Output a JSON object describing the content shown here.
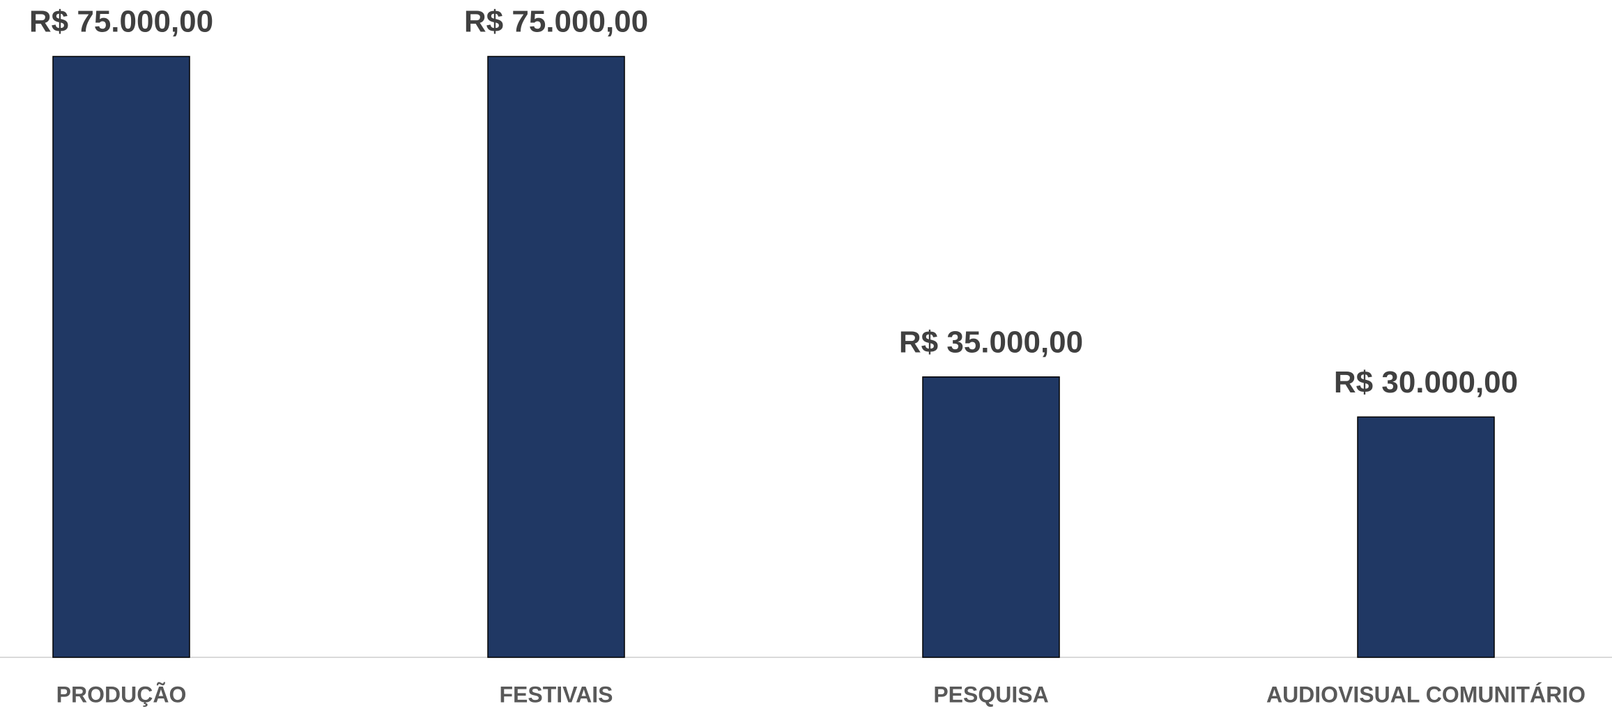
{
  "chart_data": {
    "type": "bar",
    "categories": [
      "PRODUÇÃO",
      "FESTIVAIS",
      "PESQUISA",
      "AUDIOVISUAL COMUNITÁRIO"
    ],
    "values": [
      75000,
      75000,
      35000,
      30000
    ],
    "value_labels": [
      "R$ 75.000,00",
      "R$ 75.000,00",
      "R$ 35.000,00",
      "R$ 30.000,00"
    ],
    "color": "#203864",
    "ylim": [
      0,
      75000
    ]
  }
}
